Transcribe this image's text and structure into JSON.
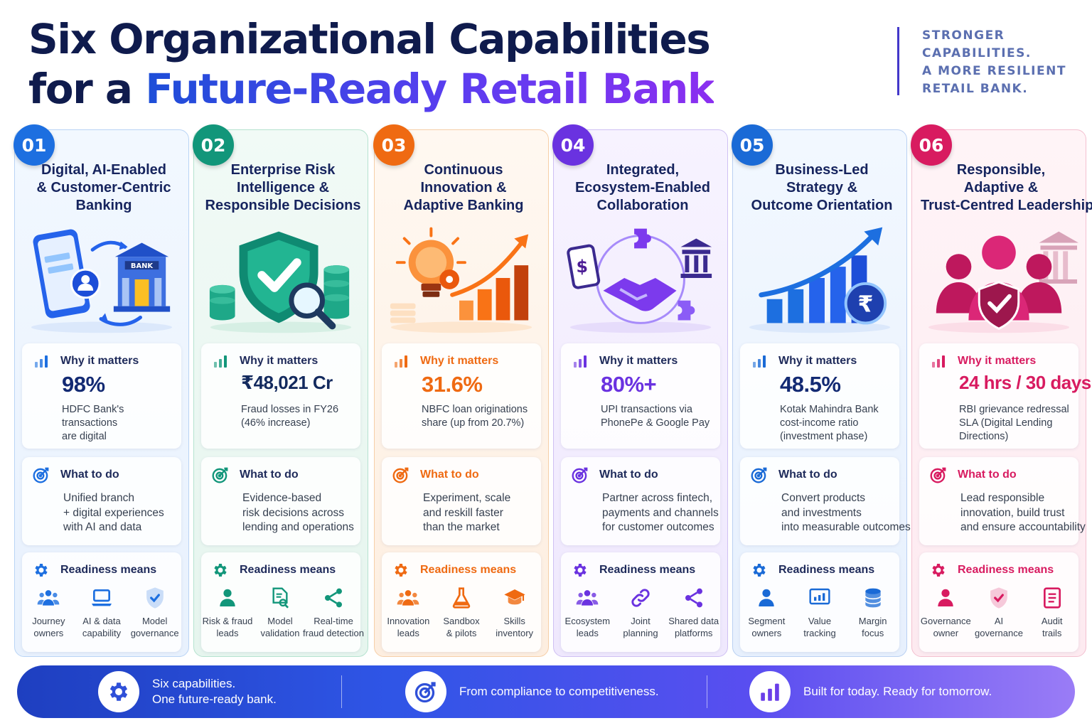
{
  "header": {
    "title_line1": "Six Organizational Capabilities",
    "title_line2_plain": "for a ",
    "title_line2_highlight": "Future-Ready Retail Bank",
    "tagline": [
      "STRONGER",
      "CAPABILITIES.",
      "A MORE RESILIENT",
      "RETAIL BANK."
    ]
  },
  "labels": {
    "why": "Why it matters",
    "do": "What to do",
    "ready": "Readiness means"
  },
  "cards": [
    {
      "number": "01",
      "accent": "#1d6fe0",
      "title": [
        "Digital, AI-Enabled",
        "& Customer-Centric",
        "Banking"
      ],
      "bank_sign": "BANK",
      "stat": "98%",
      "stat_desc": [
        "HDFC Bank's",
        "transactions",
        "are digital"
      ],
      "do_desc": [
        "Unified branch",
        "+ digital experiences",
        "with AI and data"
      ],
      "ready": [
        {
          "label": [
            "Journey",
            "owners"
          ],
          "icon": "people-icon"
        },
        {
          "label": [
            "AI & data",
            "capability"
          ],
          "icon": "laptop-icon"
        },
        {
          "label": [
            "Model",
            "governance"
          ],
          "icon": "shield-check-icon"
        }
      ]
    },
    {
      "number": "02",
      "accent": "#12967a",
      "title": [
        "Enterprise Risk",
        "Intelligence &",
        "Responsible Decisions"
      ],
      "stat": "₹48,021 Cr",
      "stat_desc": [
        "Fraud losses in FY26",
        "(46% increase)"
      ],
      "do_desc": [
        "Evidence-based",
        "risk decisions across",
        "lending and operations"
      ],
      "ready": [
        {
          "label": [
            "Risk & fraud",
            "leads"
          ],
          "icon": "person-icon"
        },
        {
          "label": [
            "Model",
            "validation"
          ],
          "icon": "document-search-icon"
        },
        {
          "label": [
            "Real-time",
            "fraud detection"
          ],
          "icon": "share-icon"
        }
      ]
    },
    {
      "number": "03",
      "accent": "#ef6a12",
      "title": [
        "Continuous",
        "Innovation &",
        "Adaptive Banking"
      ],
      "stat": "31.6%",
      "stat_desc": [
        "NBFC loan originations",
        "share (up from 20.7%)"
      ],
      "do_desc": [
        "Experiment, scale",
        "and reskill faster",
        "than the market"
      ],
      "ready": [
        {
          "label": [
            "Innovation",
            "leads"
          ],
          "icon": "people-icon"
        },
        {
          "label": [
            "Sandbox",
            "& pilots"
          ],
          "icon": "flask-icon"
        },
        {
          "label": [
            "Skills",
            "inventory"
          ],
          "icon": "graduation-cap-icon"
        }
      ]
    },
    {
      "number": "04",
      "accent": "#6a32e0",
      "title": [
        "Integrated,",
        "Ecosystem-Enabled",
        "Collaboration"
      ],
      "stat": "80%+",
      "stat_desc": [
        "UPI transactions via",
        "PhonePe & Google Pay"
      ],
      "do_desc": [
        "Partner across fintech,",
        "payments and channels",
        "for customer outcomes"
      ],
      "ready": [
        {
          "label": [
            "Ecosystem",
            "leads"
          ],
          "icon": "people-icon"
        },
        {
          "label": [
            "Joint",
            "planning"
          ],
          "icon": "link-icon"
        },
        {
          "label": [
            "Shared data",
            "platforms"
          ],
          "icon": "share-icon"
        }
      ]
    },
    {
      "number": "05",
      "accent": "#1a6ad6",
      "title": [
        "Business-Led",
        "Strategy &",
        "Outcome Orientation"
      ],
      "stat": "48.5%",
      "stat_desc": [
        "Kotak Mahindra Bank",
        "cost-income ratio",
        "(investment phase)"
      ],
      "do_desc": [
        "Convert products",
        "and investments",
        "into measurable outcomes"
      ],
      "ready": [
        {
          "label": [
            "Segment",
            "owners"
          ],
          "icon": "person-icon"
        },
        {
          "label": [
            "Value",
            "tracking"
          ],
          "icon": "chart-screen-icon"
        },
        {
          "label": [
            "Margin",
            "focus"
          ],
          "icon": "database-icon"
        }
      ]
    },
    {
      "number": "06",
      "accent": "#d81b60",
      "title": [
        "Responsible,",
        "Adaptive &",
        "Trust-Centred Leadership"
      ],
      "stat": "24 hrs / 30 days",
      "stat_desc": [
        "RBI grievance redressal",
        "SLA (Digital Lending",
        "Directions)"
      ],
      "do_desc": [
        "Lead responsible",
        "innovation, build trust",
        "and ensure accountability"
      ],
      "ready": [
        {
          "label": [
            "Governance",
            "owner"
          ],
          "icon": "person-icon"
        },
        {
          "label": [
            "AI",
            "governance"
          ],
          "icon": "shield-check-icon"
        },
        {
          "label": [
            "Audit",
            "trails"
          ],
          "icon": "document-icon"
        }
      ]
    }
  ],
  "footer": [
    {
      "text": [
        "Six capabilities.",
        "One future-ready bank."
      ],
      "icon": "gear-icon"
    },
    {
      "text": [
        "From compliance to competitiveness."
      ],
      "icon": "target-icon"
    },
    {
      "text": [
        "Built for today. Ready for tomorrow."
      ],
      "icon": "bar-chart-icon"
    }
  ]
}
